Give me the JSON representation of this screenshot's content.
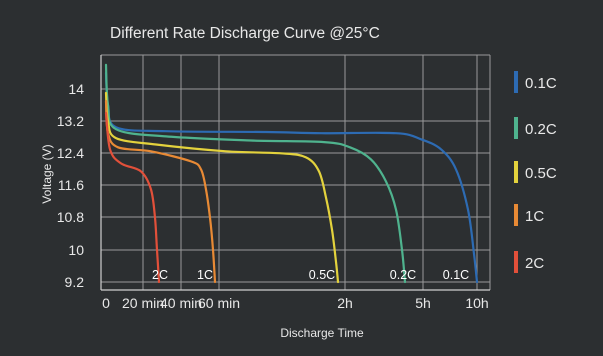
{
  "chart_data": {
    "type": "line",
    "title": "Different Rate Discharge Curve @25°C",
    "xlabel": "Discharge Time",
    "ylabel": "Voltage (V)",
    "y_ticks": [
      14,
      13.2,
      12.4,
      11.6,
      10.8,
      10,
      9.2
    ],
    "ylim": [
      9.2,
      14.8
    ],
    "x_ticks": [
      "0",
      "20 min",
      "40 min",
      "60 min",
      "2h",
      "5h",
      "10h"
    ],
    "grid": true,
    "legend_position": "right",
    "series": [
      {
        "name": "0.1C",
        "color": "#2d6bb3",
        "curve_label": "0.1C",
        "points": [
          [
            0,
            14.4
          ],
          [
            2,
            13.6
          ],
          [
            10,
            13.05
          ],
          [
            60,
            12.95
          ],
          [
            160,
            12.93
          ],
          [
            215,
            12.9
          ],
          [
            290,
            12.9
          ],
          [
            315,
            12.75
          ],
          [
            335,
            12.5
          ],
          [
            350,
            12.0
          ],
          [
            362,
            11.0
          ],
          [
            368,
            9.9
          ],
          [
            371,
            9.2
          ]
        ]
      },
      {
        "name": "0.2C",
        "color": "#4fb38e",
        "curve_label": "0.2C",
        "points": [
          [
            0,
            14.6
          ],
          [
            2,
            13.6
          ],
          [
            10,
            13.0
          ],
          [
            60,
            12.82
          ],
          [
            145,
            12.72
          ],
          [
            218,
            12.68
          ],
          [
            244,
            12.55
          ],
          [
            265,
            12.25
          ],
          [
            280,
            11.7
          ],
          [
            290,
            11.0
          ],
          [
            296,
            10.0
          ],
          [
            299,
            9.2
          ]
        ]
      },
      {
        "name": "0.5C",
        "color": "#e3d23d",
        "curve_label": "0.5C",
        "points": [
          [
            0,
            13.9
          ],
          [
            2,
            13.2
          ],
          [
            10,
            12.78
          ],
          [
            50,
            12.62
          ],
          [
            120,
            12.45
          ],
          [
            175,
            12.4
          ],
          [
            200,
            12.3
          ],
          [
            213,
            11.95
          ],
          [
            220,
            11.3
          ],
          [
            226,
            10.5
          ],
          [
            230,
            9.7
          ],
          [
            232,
            9.2
          ]
        ]
      },
      {
        "name": "1C",
        "color": "#e88a35",
        "curve_label": "1C",
        "points": [
          [
            0,
            13.7
          ],
          [
            2,
            12.9
          ],
          [
            12,
            12.55
          ],
          [
            45,
            12.45
          ],
          [
            85,
            12.2
          ],
          [
            95,
            12.0
          ],
          [
            100,
            11.5
          ],
          [
            104,
            10.8
          ],
          [
            107,
            10.0
          ],
          [
            109,
            9.2
          ]
        ]
      },
      {
        "name": "2C",
        "color": "#e2503a",
        "curve_label": "2C",
        "points": [
          [
            0,
            13.4
          ],
          [
            4,
            12.5
          ],
          [
            15,
            12.15
          ],
          [
            35,
            11.95
          ],
          [
            45,
            11.5
          ],
          [
            49,
            10.8
          ],
          [
            51,
            10.0
          ],
          [
            53,
            9.2
          ]
        ]
      }
    ]
  }
}
